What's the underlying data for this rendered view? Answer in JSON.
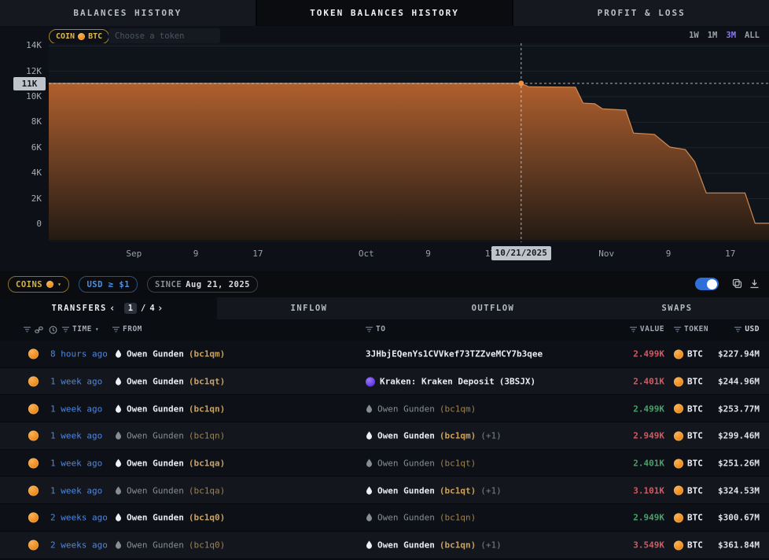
{
  "colors": {
    "value_down": "#cf5b65",
    "value_up": "#4aa06a",
    "accent_gold": "#d8b23e",
    "accent_blue": "#4a8fe8",
    "range_active": "#8b79ea",
    "toggle_on": "#2f6fd8",
    "bitcoin_orange": "#ef8f1f",
    "kraken_purple": "#6a42e8"
  },
  "top_tabs": {
    "active_index": 1,
    "items": [
      {
        "label": "BALANCES HISTORY"
      },
      {
        "label": "TOKEN BALANCES HISTORY"
      },
      {
        "label": "PROFIT & LOSS"
      }
    ]
  },
  "chart_controls": {
    "coin_pill_label": "COIN",
    "coin_pill_token": "BTC",
    "token_input_placeholder": "Choose a token",
    "ranges": {
      "r1": "1W",
      "r2": "1M",
      "r3": "3M",
      "r4": "ALL",
      "active": "3M"
    }
  },
  "chart_data": {
    "type": "area",
    "title": "Token balances history (BTC)",
    "x_axis": {
      "unit": "date",
      "start": "Aug 21, 2025",
      "end": "Nov 22, 2025",
      "span_days": 93
    },
    "xticks": [
      {
        "label": "Sep",
        "day": 11
      },
      {
        "label": "9",
        "day": 19
      },
      {
        "label": "17",
        "day": 27
      },
      {
        "label": "Oct",
        "day": 41
      },
      {
        "label": "9",
        "day": 49
      },
      {
        "label": "17",
        "day": 57
      },
      {
        "label": "Nov",
        "day": 72
      },
      {
        "label": "9",
        "day": 80
      },
      {
        "label": "17",
        "day": 88
      }
    ],
    "yticks": [
      {
        "label": "14K",
        "v": 14
      },
      {
        "label": "12K",
        "v": 12
      },
      {
        "label": "10K",
        "v": 10
      },
      {
        "label": "8K",
        "v": 8
      },
      {
        "label": "6K",
        "v": 6
      },
      {
        "label": "4K",
        "v": 4
      },
      {
        "label": "2K",
        "v": 2
      },
      {
        "label": "0",
        "v": 0
      }
    ],
    "ylim": [
      0,
      14.5
    ],
    "y_unit": "K BTC",
    "grid": "horizontal",
    "legend": "none",
    "series": [
      {
        "name": "BTC balance",
        "points_day_value_k": [
          [
            0,
            11.05
          ],
          [
            61,
            11.05
          ],
          [
            62,
            10.78
          ],
          [
            68,
            10.75
          ],
          [
            69,
            9.5
          ],
          [
            70.5,
            9.45
          ],
          [
            71.5,
            9.05
          ],
          [
            74.5,
            8.95
          ],
          [
            75.5,
            7.15
          ],
          [
            78.2,
            7.05
          ],
          [
            80.2,
            6.05
          ],
          [
            82.2,
            5.85
          ],
          [
            83.4,
            4.9
          ],
          [
            84.9,
            2.45
          ],
          [
            89.9,
            2.45
          ],
          [
            91.2,
            0.07
          ],
          [
            93,
            0.07
          ]
        ]
      }
    ],
    "crosshair": {
      "day": 61,
      "value_k": 11.05,
      "date_label": "10/21/2025",
      "value_label": "11K"
    },
    "colors": {
      "fill_top": "#b05f2d",
      "fill_mid": "#6f4124",
      "fill_bottom": "#241a13",
      "line": "#d08a52",
      "crosshair": "#d8dbe0",
      "dot": "#ef913f"
    }
  },
  "filter_bar": {
    "coins_pill": {
      "label": "COINS"
    },
    "usd_pill": {
      "label": "USD ≥ $1"
    },
    "since_pill": {
      "label": "SINCE",
      "value": "Aug 21, 2025"
    },
    "toggle_on": true
  },
  "table": {
    "tabs": {
      "transfers": "TRANSFERS",
      "inflow": "INFLOW",
      "outflow": "OUTFLOW",
      "swaps": "SWAPS"
    },
    "pagination": {
      "prev": "‹",
      "page": "1",
      "separator": "/",
      "total": "4",
      "next": "›"
    },
    "headers": {
      "time": "TIME",
      "from": "FROM",
      "to": "TO",
      "value": "VALUE",
      "token": "TOKEN",
      "usd": "USD"
    },
    "rows": [
      {
        "time": "8 hours ago",
        "from": {
          "icon": "owen-gunden",
          "name": "Owen Gunden",
          "addr": "(bc1qm)",
          "dim": false
        },
        "to": {
          "icon": null,
          "name": "3JHbjEQenYs1CVVkef73TZZveMCY7b3qee",
          "addr": "",
          "dim": false
        },
        "value": "2.499K",
        "direction": "down",
        "token": "BTC",
        "usd": "$227.94M"
      },
      {
        "time": "1 week ago",
        "from": {
          "icon": "owen-gunden",
          "name": "Owen Gunden",
          "addr": "(bc1qt)",
          "dim": false
        },
        "to": {
          "icon": "kraken",
          "name": "Kraken: Kraken Deposit",
          "addr": "(3BSJX)",
          "addr_plain": true,
          "dim": false
        },
        "value": "2.401K",
        "direction": "down",
        "token": "BTC",
        "usd": "$244.96M"
      },
      {
        "time": "1 week ago",
        "from": {
          "icon": "owen-gunden",
          "name": "Owen Gunden",
          "addr": "(bc1qn)",
          "dim": false
        },
        "to": {
          "icon": "owen-gunden",
          "name": "Owen Gunden",
          "addr": "(bc1qm)",
          "dim": true
        },
        "value": "2.499K",
        "direction": "up",
        "token": "BTC",
        "usd": "$253.77M"
      },
      {
        "time": "1 week ago",
        "from": {
          "icon": "owen-gunden",
          "name": "Owen Gunden",
          "addr": "(bc1qn)",
          "dim": true
        },
        "to": {
          "icon": "owen-gunden",
          "name": "Owen Gunden",
          "addr": "(bc1qm)",
          "extra": "(+1)",
          "dim": false
        },
        "value": "2.949K",
        "direction": "down",
        "token": "BTC",
        "usd": "$299.46M"
      },
      {
        "time": "1 week ago",
        "from": {
          "icon": "owen-gunden",
          "name": "Owen Gunden",
          "addr": "(bc1qa)",
          "dim": false
        },
        "to": {
          "icon": "owen-gunden",
          "name": "Owen Gunden",
          "addr": "(bc1qt)",
          "dim": true
        },
        "value": "2.401K",
        "direction": "up",
        "token": "BTC",
        "usd": "$251.26M"
      },
      {
        "time": "1 week ago",
        "from": {
          "icon": "owen-gunden",
          "name": "Owen Gunden",
          "addr": "(bc1qa)",
          "dim": true
        },
        "to": {
          "icon": "owen-gunden",
          "name": "Owen Gunden",
          "addr": "(bc1qt)",
          "extra": "(+1)",
          "dim": false
        },
        "value": "3.101K",
        "direction": "down",
        "token": "BTC",
        "usd": "$324.53M"
      },
      {
        "time": "2 weeks ago",
        "from": {
          "icon": "owen-gunden",
          "name": "Owen Gunden",
          "addr": "(bc1q0)",
          "dim": false
        },
        "to": {
          "icon": "owen-gunden",
          "name": "Owen Gunden",
          "addr": "(bc1qn)",
          "dim": true
        },
        "value": "2.949K",
        "direction": "up",
        "token": "BTC",
        "usd": "$300.67M"
      },
      {
        "time": "2 weeks ago",
        "from": {
          "icon": "owen-gunden",
          "name": "Owen Gunden",
          "addr": "(bc1q0)",
          "dim": true
        },
        "to": {
          "icon": "owen-gunden",
          "name": "Owen Gunden",
          "addr": "(bc1qn)",
          "extra": "(+1)",
          "dim": false
        },
        "value": "3.549K",
        "direction": "down",
        "token": "BTC",
        "usd": "$361.84M"
      }
    ]
  }
}
